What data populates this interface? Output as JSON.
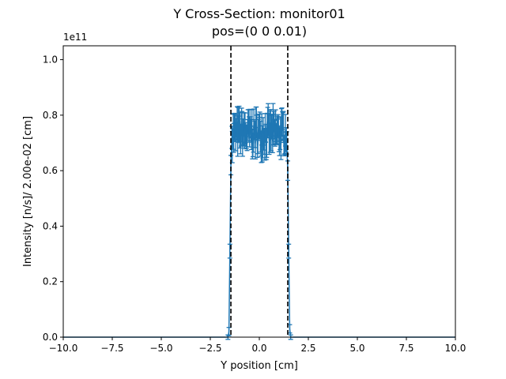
{
  "chart_data": {
    "type": "line",
    "title": "Y Cross-Section: monitor01",
    "subtitle": "pos=(0 0 0.01)",
    "xlabel": "Y position [cm]",
    "ylabel": "Intensity [n/s]/ 2.00e-02 [cm]",
    "y_offset_label": "1e11",
    "xlim": [
      -10,
      10
    ],
    "ylim": [
      0,
      1.05
    ],
    "y_scale_note": "values in units of 1e11",
    "grid": false,
    "legend": "none",
    "x_ticks": [
      -10,
      -7.5,
      -5,
      -2.5,
      0,
      2.5,
      5,
      7.5,
      10
    ],
    "x_tick_labels": [
      "−10.0",
      "−7.5",
      "−5.0",
      "−2.5",
      "0.0",
      "2.5",
      "5.0",
      "7.5",
      "10.0"
    ],
    "y_ticks": [
      0,
      0.2,
      0.4,
      0.6,
      0.8,
      1.0
    ],
    "y_tick_labels": [
      "0.0",
      "0.2",
      "0.4",
      "0.6",
      "0.8",
      "1.0"
    ],
    "series_color": "#1f77b4",
    "vlines": [
      -1.45,
      1.45
    ],
    "vline_color": "#000000",
    "errorbar_profile": {
      "plateau_x": [
        -1.38,
        1.38
      ],
      "plateau_mean": 0.735,
      "plateau_amplitude": 0.05,
      "plateau_error": 0.045,
      "edge_points": [
        {
          "x": -1.6,
          "y": 0.0,
          "err": 0.008
        },
        {
          "x": -1.55,
          "y": 0.02,
          "err": 0.015
        },
        {
          "x": -1.5,
          "y": 0.31,
          "err": 0.025
        },
        {
          "x": -1.45,
          "y": 0.62,
          "err": 0.035
        },
        {
          "x": -1.4,
          "y": 0.72,
          "err": 0.04
        },
        {
          "x": 1.4,
          "y": 0.7,
          "err": 0.04
        },
        {
          "x": 1.45,
          "y": 0.6,
          "err": 0.035
        },
        {
          "x": 1.5,
          "y": 0.31,
          "err": 0.025
        },
        {
          "x": 1.55,
          "y": 0.03,
          "err": 0.015
        },
        {
          "x": 1.6,
          "y": 0.0,
          "err": 0.008
        }
      ],
      "baseline_y": 0.0
    }
  }
}
